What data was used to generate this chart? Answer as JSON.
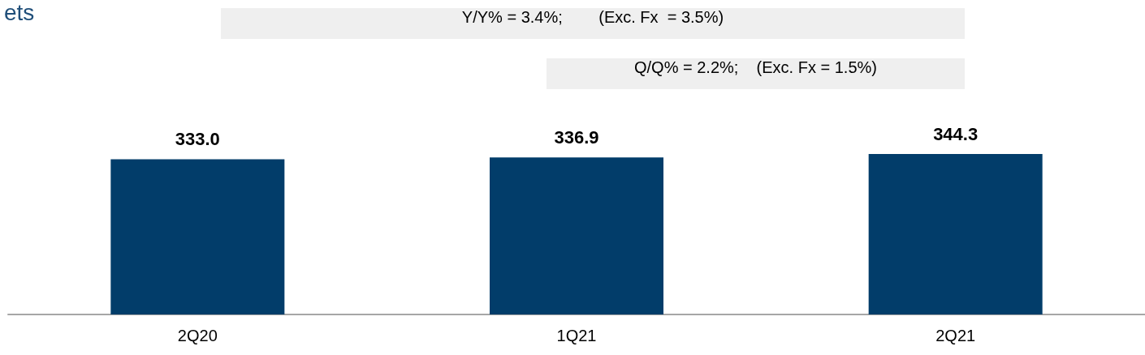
{
  "chart_data": {
    "type": "bar",
    "title": "ets",
    "categories": [
      "2Q20",
      "1Q21",
      "2Q21"
    ],
    "values": [
      333.0,
      336.9,
      344.3
    ],
    "value_labels": [
      "333.0",
      "336.9",
      "344.3"
    ],
    "color": "#023d6a",
    "annotations": [
      "Y/Y% = 3.4%;        (Exc. Fx  = 3.5%)",
      "Q/Q% = 2.2%;    (Exc. Fx = 1.5%)"
    ]
  }
}
